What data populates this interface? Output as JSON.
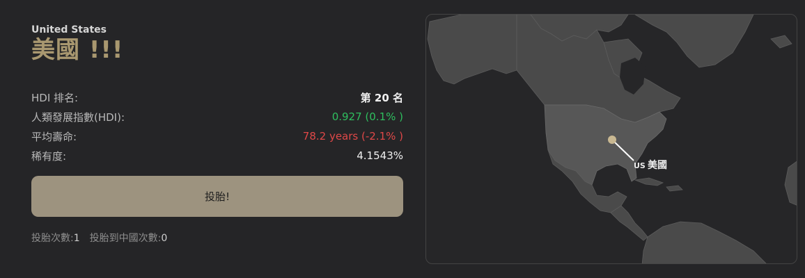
{
  "country": {
    "name_en": "United States",
    "name_zh": "美國",
    "exclaim": "!!!",
    "code": "US"
  },
  "stats": [
    {
      "label": "HDI 排名:",
      "value": "第 20 名",
      "style": "bold"
    },
    {
      "label": "人類發展指數(HDI):",
      "value": "0.927 (0.1% )",
      "style": "green"
    },
    {
      "label": "平均壽命:",
      "value": "78.2 years (-2.1% )",
      "style": "red"
    },
    {
      "label": "稀有度:",
      "value": "4.1543%",
      "style": "plain"
    }
  ],
  "button": {
    "label": "投胎!"
  },
  "counts": {
    "reroll_label": "投胎次數:",
    "reroll_value": "1",
    "china_label": "投胎到中國次數:",
    "china_value": "0"
  },
  "map": {
    "marker_code": "US",
    "marker_name": "美國",
    "colors": {
      "land": "#4a4a4a",
      "highlight": "#575757",
      "marker": "#c9b892"
    }
  }
}
